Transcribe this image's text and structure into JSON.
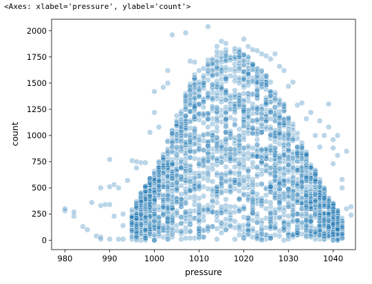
{
  "output": {
    "repr_text": "<Axes: xlabel='pressure', ylabel='count'>"
  },
  "chart_data": {
    "type": "scatter",
    "title": "",
    "xlabel": "pressure",
    "ylabel": "count",
    "xlim": [
      977,
      1045
    ],
    "ylim": [
      -90,
      2110
    ],
    "xticks": [
      980,
      990,
      1000,
      1010,
      1020,
      1030,
      1040
    ],
    "yticks": [
      0,
      250,
      500,
      750,
      1000,
      1250,
      1500,
      1750,
      2000
    ],
    "grid": false,
    "legend": "none",
    "marker_color": "#1f77b4",
    "marker_alpha": 0.3,
    "points": [
      [
        980,
        280
      ],
      [
        980,
        300
      ],
      [
        982,
        230
      ],
      [
        982,
        270
      ],
      [
        984,
        130
      ],
      [
        985,
        100
      ],
      [
        986,
        360
      ],
      [
        987,
        40
      ],
      [
        988,
        330
      ],
      [
        988,
        500
      ],
      [
        988,
        30
      ],
      [
        988,
        10
      ],
      [
        989,
        340
      ],
      [
        990,
        340
      ],
      [
        990,
        770
      ],
      [
        990,
        510
      ],
      [
        990,
        10
      ],
      [
        991,
        530
      ],
      [
        991,
        230
      ],
      [
        992,
        10
      ],
      [
        992,
        500
      ],
      [
        993,
        250
      ],
      [
        993,
        140
      ],
      [
        993,
        10
      ],
      [
        994,
        570
      ],
      [
        995,
        760
      ],
      [
        996,
        750
      ],
      [
        997,
        740
      ],
      [
        996,
        690
      ],
      [
        998,
        740
      ],
      [
        999,
        1030
      ],
      [
        1000,
        1420
      ],
      [
        1000,
        1220
      ],
      [
        1001,
        1080
      ],
      [
        1002,
        1460
      ],
      [
        1003,
        1620
      ],
      [
        1003,
        1500
      ],
      [
        1004,
        1960
      ],
      [
        1005,
        1190
      ],
      [
        1006,
        1210
      ],
      [
        1007,
        1980
      ],
      [
        1008,
        1710
      ],
      [
        1009,
        1700
      ],
      [
        1012,
        2040
      ],
      [
        1014,
        1850
      ],
      [
        1015,
        1900
      ],
      [
        1016,
        1880
      ],
      [
        1018,
        1830
      ],
      [
        1019,
        1820
      ],
      [
        1020,
        1920
      ],
      [
        1021,
        1850
      ],
      [
        1022,
        1820
      ],
      [
        1023,
        1810
      ],
      [
        1024,
        1780
      ],
      [
        1025,
        1760
      ],
      [
        1026,
        1730
      ],
      [
        1027,
        1780
      ],
      [
        1028,
        1660
      ],
      [
        1029,
        1620
      ],
      [
        1030,
        1470
      ],
      [
        1031,
        1510
      ],
      [
        1032,
        1290
      ],
      [
        1033,
        1310
      ],
      [
        1034,
        1160
      ],
      [
        1035,
        1220
      ],
      [
        1036,
        1000
      ],
      [
        1037,
        890
      ],
      [
        1037,
        1140
      ],
      [
        1038,
        1000
      ],
      [
        1039,
        1080
      ],
      [
        1039,
        1300
      ],
      [
        1040,
        960
      ],
      [
        1040,
        730
      ],
      [
        1040,
        880
      ],
      [
        1041,
        810
      ],
      [
        1041,
        1000
      ],
      [
        1042,
        580
      ],
      [
        1042,
        500
      ],
      [
        1043,
        850
      ],
      [
        1043,
        300
      ],
      [
        1044,
        320
      ],
      [
        1044,
        240
      ]
    ],
    "density_profile": {
      "description": "dense cloud spanning pressure 995-1042; peak count envelope near 1015-1020",
      "x_range": [
        995,
        1042
      ],
      "envelope": [
        [
          995,
          300
        ],
        [
          997,
          450
        ],
        [
          999,
          600
        ],
        [
          1001,
          750
        ],
        [
          1003,
          950
        ],
        [
          1005,
          1150
        ],
        [
          1007,
          1400
        ],
        [
          1009,
          1600
        ],
        [
          1011,
          1700
        ],
        [
          1013,
          1780
        ],
        [
          1015,
          1820
        ],
        [
          1017,
          1830
        ],
        [
          1019,
          1800
        ],
        [
          1021,
          1750
        ],
        [
          1023,
          1680
        ],
        [
          1025,
          1580
        ],
        [
          1027,
          1440
        ],
        [
          1029,
          1300
        ],
        [
          1031,
          1120
        ],
        [
          1033,
          930
        ],
        [
          1035,
          760
        ],
        [
          1037,
          580
        ],
        [
          1039,
          420
        ],
        [
          1041,
          290
        ],
        [
          1042,
          220
        ]
      ],
      "point_count": 2600
    }
  }
}
